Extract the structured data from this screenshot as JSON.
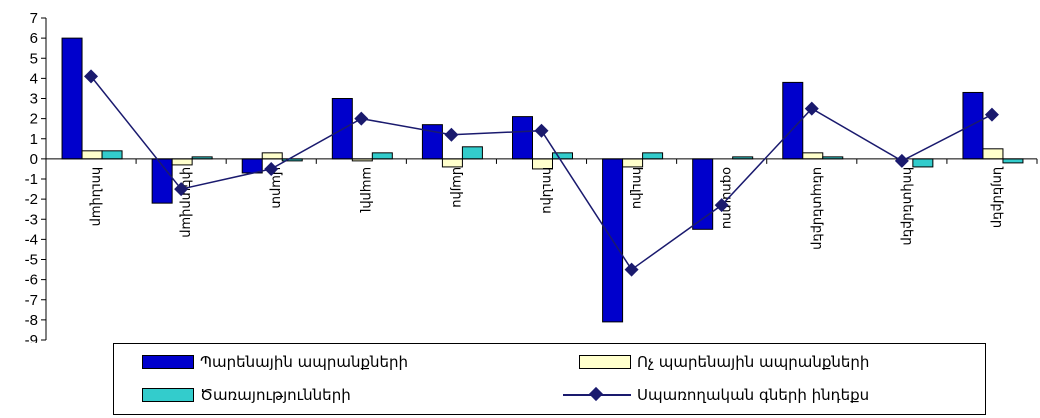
{
  "chart_data": {
    "type": "bar",
    "categories": [
      "հունվար",
      "փետրվար",
      "մարտ",
      "ապրիլ",
      "մայիս",
      "հունիս",
      "հուլիս",
      "օգոստոս",
      "սեպտեմբեր",
      "հոկտեմբեր",
      "նոյեմբեր"
    ],
    "series": [
      {
        "name": "Պարենային ապրանքների",
        "type": "bar",
        "color": "#0000cc",
        "values": [
          6.0,
          -2.2,
          -0.7,
          3.0,
          1.7,
          2.1,
          -8.1,
          -3.5,
          3.8,
          0.0,
          3.3
        ]
      },
      {
        "name": "Ոչ պարենային  ապրանքների",
        "type": "bar",
        "color": "#ffffcc",
        "values": [
          0.4,
          -0.3,
          0.3,
          -0.1,
          -0.4,
          -0.5,
          -0.4,
          0.0,
          0.3,
          0.0,
          0.5
        ]
      },
      {
        "name": "Ծառայությունների",
        "type": "bar",
        "color": "#33cccc",
        "values": [
          0.4,
          0.1,
          -0.1,
          0.3,
          0.6,
          0.3,
          0.3,
          0.1,
          0.1,
          -0.4,
          -0.2
        ]
      },
      {
        "name": "Սպառողական գների ինդեքս",
        "type": "line",
        "color": "#1a1a6e",
        "values": [
          4.1,
          -1.5,
          -0.5,
          2.0,
          1.2,
          1.4,
          -5.5,
          -2.3,
          2.5,
          -0.1,
          2.2
        ]
      }
    ],
    "yticks": [
      7,
      6,
      5,
      4,
      3,
      2,
      1,
      0,
      -1,
      -2,
      -3,
      -4,
      -5,
      -6,
      -7,
      -8,
      -9
    ],
    "ylim": [
      -9,
      7
    ],
    "title": "",
    "xlabel": "",
    "ylabel": "",
    "grid": false,
    "legend_position": "bottom"
  }
}
